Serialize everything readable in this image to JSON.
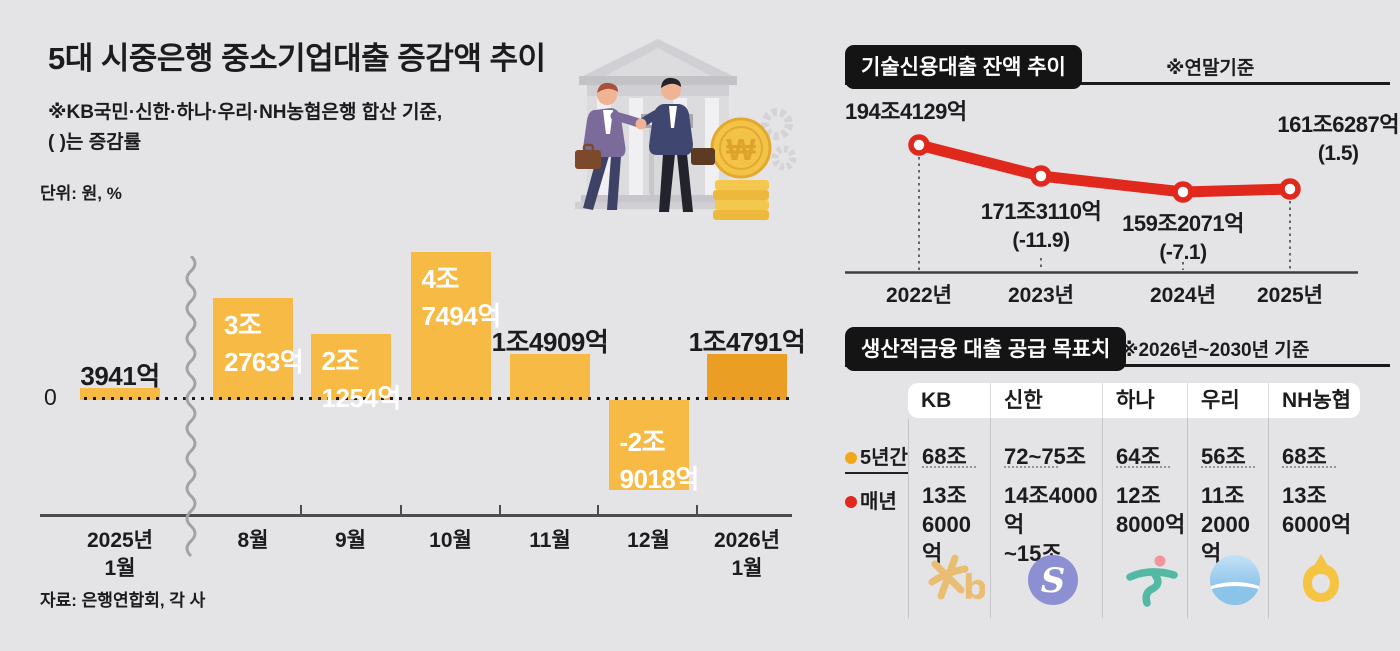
{
  "left_chart": {
    "title": "5대 시중은행 중소기업대출 증감액 추이",
    "subtitle1": "※KB국민·신한·하나·우리·NH농협은행 합산 기준,",
    "subtitle2": "( )는 증감률",
    "unit": "단위: 원, %",
    "zero_label": "0",
    "source": "자료: 은행연합회, 각 사",
    "bar_color": "#F6BA45",
    "bar_highlight_color": "#EA9F24"
  },
  "line_chart": {
    "badge": "기술신용대출 잔액 추이",
    "note": "※연말기준",
    "line_color": "#E0281D"
  },
  "table": {
    "badge": "생산적금융 대출 공급 목표치",
    "note": "※2026년~2030년 기준",
    "row_dots": [
      "#F2A71B",
      "#E0281D"
    ],
    "logo_names": [
      "kb-logo",
      "shinhan-logo",
      "hana-logo",
      "woori-logo",
      "nh-logo"
    ]
  },
  "illustration": {
    "bank_sign": "BANK",
    "coin_symbol": "₩"
  },
  "chart_data": [
    {
      "type": "bar",
      "title": "5대 시중은행 중소기업대출 증감액 추이",
      "unit": "원",
      "categories": [
        "2025년 1월",
        "8월",
        "9월",
        "10월",
        "11월",
        "12월",
        "2026년 1월"
      ],
      "x_labels": [
        "2025년|1월",
        "8월",
        "9월",
        "10월",
        "11월",
        "12월",
        "2026년|1월"
      ],
      "values_eok": [
        3941,
        32763,
        21254,
        47494,
        14909,
        -29018,
        14791
      ],
      "bar_labels": [
        "3941억",
        "3조|2763억",
        "2조|1254억",
        "4조|7494억",
        "1조4909억",
        "-2조|9018억",
        "1조4791억"
      ],
      "label_pos": [
        "above",
        "inside",
        "inside",
        "inside",
        "above",
        "inside",
        "above"
      ],
      "highlight_index": 6,
      "axis_break_after_index": 0,
      "baseline": 0
    },
    {
      "type": "line",
      "title": "기술신용대출 잔액 추이",
      "note": "※연말기준",
      "x": [
        "2022년",
        "2023년",
        "2024년",
        "2025년"
      ],
      "values_jo": [
        194.4129,
        171.311,
        159.2071,
        161.6287
      ],
      "value_labels": [
        "194조4129억",
        "171조3110억",
        "159조2071억",
        "161조6287억"
      ],
      "change_labels": [
        "",
        "(-11.9)",
        "(-7.1)",
        "(1.5)"
      ]
    },
    {
      "type": "table",
      "title": "생산적금융 대출 공급 목표치",
      "note": "※2026년~2030년 기준",
      "columns": [
        "KB",
        "신한",
        "하나",
        "우리",
        "NH농협"
      ],
      "rows": [
        {
          "label": "5년간",
          "values": [
            "68조",
            "72~75조",
            "64조",
            "56조",
            "68조"
          ]
        },
        {
          "label": "매년",
          "values": [
            "13조|6000억",
            "14조4000억|~15조",
            "12조|8000억",
            "11조|2000억",
            "13조|6000억"
          ]
        }
      ]
    }
  ]
}
